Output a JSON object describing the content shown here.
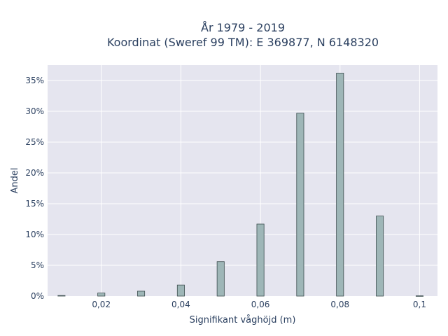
{
  "chart_data": {
    "type": "bar",
    "title_lines": [
      "År 1979 - 2019",
      "Koordinat (Sweref 99 TM): E 369877, N 6148320"
    ],
    "xlabel": "Signifikant våghöjd (m)",
    "ylabel": "Andel",
    "x": [
      0.01,
      0.02,
      0.03,
      0.04,
      0.05,
      0.06,
      0.07,
      0.08,
      0.09,
      0.1
    ],
    "values": [
      0.1,
      0.5,
      0.8,
      1.8,
      5.6,
      11.7,
      29.7,
      36.2,
      13.0,
      0.05
    ],
    "xlim": [
      0.0065,
      0.1045
    ],
    "ylim": [
      0,
      37.5
    ],
    "xticks": [
      0.02,
      0.04,
      0.06,
      0.08,
      0.1
    ],
    "xtick_labels": [
      "0,02",
      "0,04",
      "0,06",
      "0,08",
      "0,1"
    ],
    "yticks": [
      0,
      5,
      10,
      15,
      20,
      25,
      30,
      35
    ],
    "ytick_labels": [
      "0%",
      "5%",
      "10%",
      "15%",
      "20%",
      "25%",
      "30%",
      "35%"
    ],
    "bar_width": 0.0018,
    "grid": true,
    "colors": {
      "bar_fill": "#9eb6b7",
      "bar_edge": "#3c4d4e",
      "plot_bg": "#e5e5ef",
      "text": "#2a3f5f"
    }
  }
}
